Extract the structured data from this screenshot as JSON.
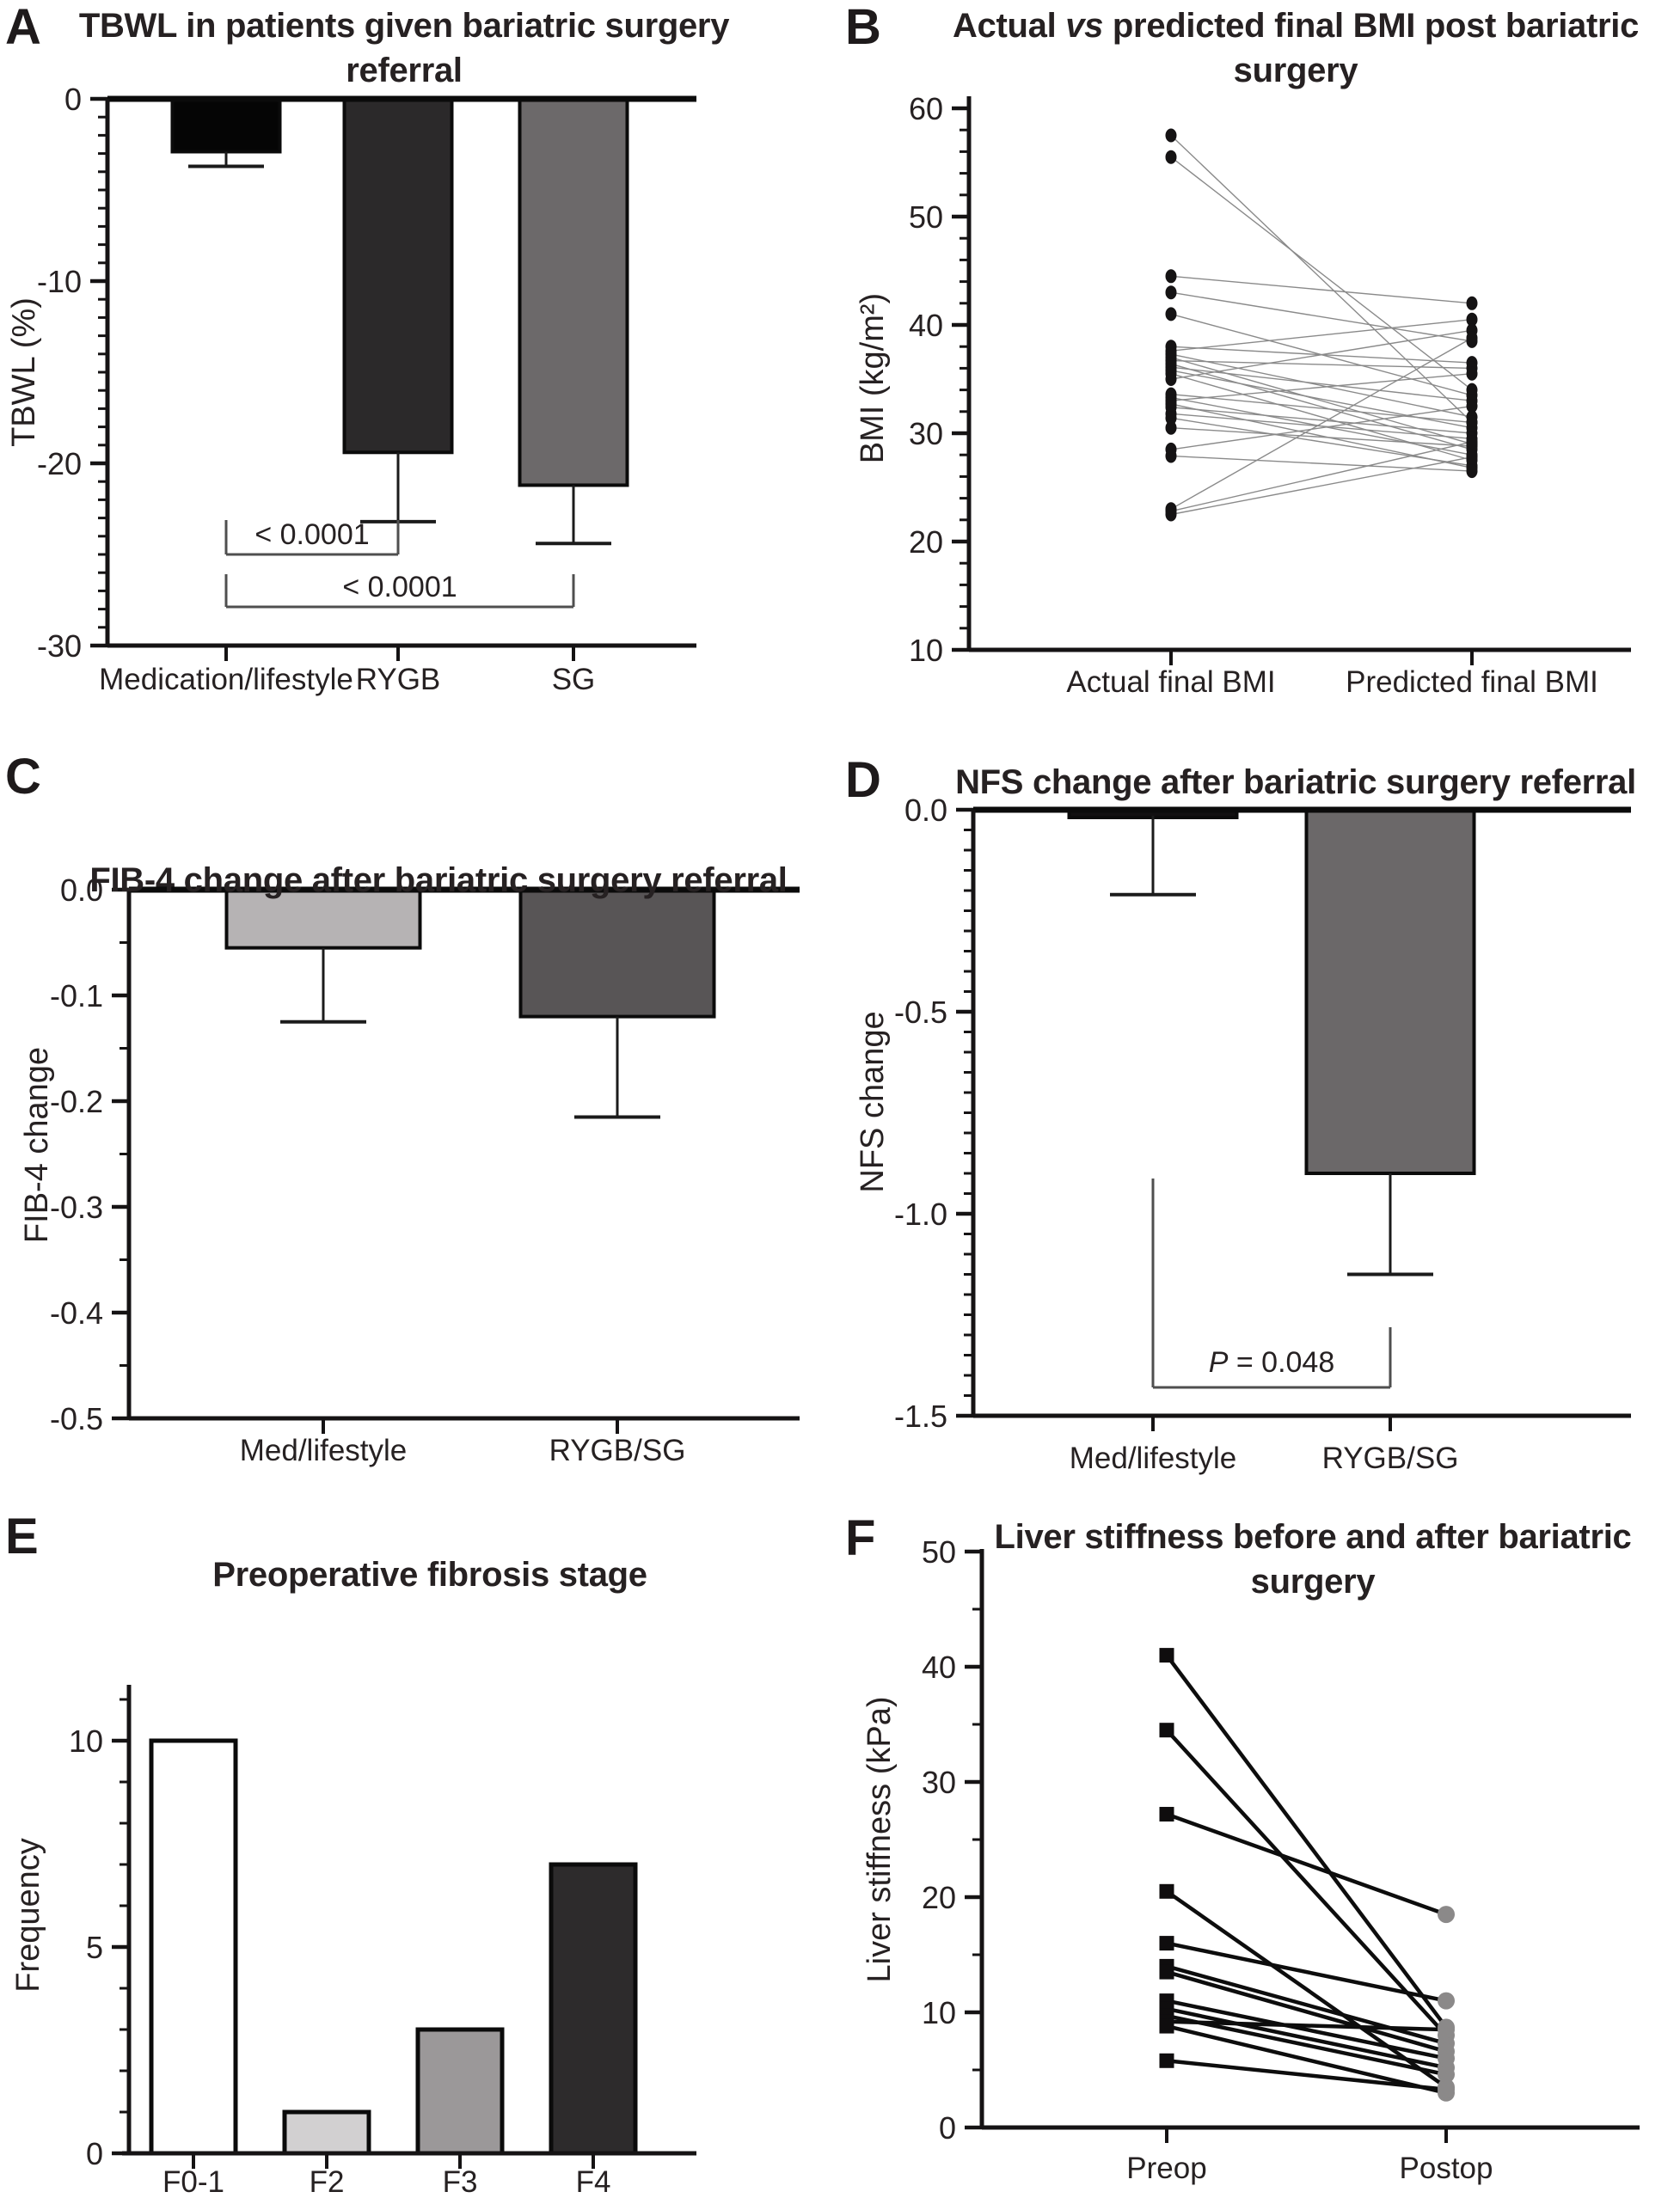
{
  "chart_data": [
    {
      "panel_label": "A",
      "type": "bar-down",
      "title_line1": "TBWL in patients given bariatric surgery",
      "title_line2": "referral",
      "ylabel": "TBWL (%)",
      "categories": [
        "Medication/lifestyle",
        "RYGB",
        "SG"
      ],
      "values": [
        -2.9,
        -19.4,
        -21.2
      ],
      "error_tips": [
        -3.7,
        -23.2,
        -24.4
      ],
      "bar_colors": [
        "#050505",
        "#2b292a",
        "#6c696a"
      ],
      "ylim": [
        0,
        -30
      ],
      "ytick_values": [
        0,
        -10,
        -20,
        -30
      ],
      "ytick_labels": [
        "0",
        "-10",
        "-20",
        "-30"
      ],
      "minor_step": 1,
      "significance": [
        {
          "from": 0,
          "to": 1,
          "label": "< 0.0001"
        },
        {
          "from": 0,
          "to": 2,
          "label": "< 0.0001"
        }
      ]
    },
    {
      "panel_label": "B",
      "type": "paired",
      "title_pre": "Actual ",
      "title_italic": "vs",
      "title_post": " predicted final BMI post bariatric",
      "title_line2": "surgery",
      "ylabel": "BMI (kg/m²)",
      "categories": [
        "Actual final BMI",
        "Predicted final BMI"
      ],
      "ylim": [
        10,
        60
      ],
      "ytick_values": [
        10,
        20,
        30,
        40,
        50,
        60
      ],
      "ytick_labels": [
        "10",
        "20",
        "30",
        "40",
        "50",
        "60"
      ],
      "minor_step": 2,
      "marker": "dot",
      "pairs": [
        [
          57.5,
          31
        ],
        [
          55.5,
          34
        ],
        [
          44.5,
          42
        ],
        [
          43,
          38.5
        ],
        [
          41,
          33.5
        ],
        [
          38,
          36.5
        ],
        [
          37.6,
          40.5
        ],
        [
          37.3,
          31.5
        ],
        [
          37,
          29
        ],
        [
          36.7,
          36
        ],
        [
          36.4,
          28.5
        ],
        [
          36.1,
          33
        ],
        [
          35.8,
          30.5
        ],
        [
          35.5,
          27.5
        ],
        [
          35,
          39.5
        ],
        [
          33.6,
          31
        ],
        [
          33.3,
          28
        ],
        [
          33,
          35.5
        ],
        [
          32.7,
          26.8
        ],
        [
          32.4,
          30
        ],
        [
          31.8,
          29.5
        ],
        [
          31.4,
          27
        ],
        [
          30.5,
          28.8
        ],
        [
          28.5,
          32.5
        ],
        [
          27.9,
          26.5
        ],
        [
          23,
          38.8
        ],
        [
          22.8,
          29.2
        ],
        [
          22.5,
          27.8
        ]
      ]
    },
    {
      "panel_label": "C",
      "type": "bar-down",
      "title_line1": "FIB-4 change after bariatric surgery referral",
      "ylabel": "FIB-4 change",
      "categories": [
        "Med/lifestyle",
        "RYGB/SG"
      ],
      "values": [
        -0.055,
        -0.12
      ],
      "error_tips": [
        -0.125,
        -0.215
      ],
      "bar_colors": [
        "#b6b3b4",
        "#585556"
      ],
      "ylim": [
        0,
        -0.5
      ],
      "ytick_values": [
        0,
        -0.1,
        -0.2,
        -0.3,
        -0.4,
        -0.5
      ],
      "ytick_labels": [
        "0.0",
        "-0.1",
        "-0.2",
        "-0.3",
        "-0.4",
        "-0.5"
      ],
      "minor_step": 0.05,
      "significance": []
    },
    {
      "panel_label": "D",
      "type": "bar-down",
      "title_line1": "NFS change after bariatric surgery referral",
      "ylabel": "NFS change",
      "categories": [
        "Med/lifestyle",
        "RYGB/SG"
      ],
      "values": [
        -0.015,
        -0.9
      ],
      "error_tips": [
        -0.21,
        -1.15
      ],
      "bar_colors": [
        "#121011",
        "#6b6869"
      ],
      "ylim": [
        0,
        -1.5
      ],
      "ytick_values": [
        0,
        -0.5,
        -1.0,
        -1.5
      ],
      "ytick_labels": [
        "0.0",
        "-0.5",
        "-1.0",
        "-1.5"
      ],
      "minor_step": 0.05,
      "significance": [
        {
          "from": 0,
          "to": 1,
          "label_italic": "P",
          "label_rest": " = 0.048"
        }
      ]
    },
    {
      "panel_label": "E",
      "type": "bar-up",
      "title_line1": "Preoperative fibrosis stage",
      "ylabel": "Frequency",
      "categories": [
        "F0-1",
        "F2",
        "F3",
        "F4"
      ],
      "values": [
        10,
        1,
        3,
        7
      ],
      "bar_colors": [
        "#ffffff",
        "#d2d0d1",
        "#9b9899",
        "#2d2b2c"
      ],
      "ylim": [
        0,
        11.3
      ],
      "ytick_values": [
        0,
        5,
        10
      ],
      "ytick_labels": [
        "0",
        "5",
        "10"
      ],
      "minor_step": 1
    },
    {
      "panel_label": "F",
      "type": "paired",
      "title_line1": "Liver stiffness before and after bariatric surgery",
      "ylabel": "Liver stiffness (kPa)",
      "categories": [
        "Preop",
        "Postop"
      ],
      "ylim": [
        0,
        50
      ],
      "ytick_values": [
        0,
        10,
        20,
        30,
        40,
        50
      ],
      "ytick_labels": [
        "0",
        "10",
        "20",
        "30",
        "40",
        "50"
      ],
      "minor_step": 5,
      "marker": "square-circle",
      "pre_color": "#0f0d0e",
      "post_color": "#8b8989",
      "pairs": [
        [
          41,
          8.7
        ],
        [
          34.5,
          8.0
        ],
        [
          27.2,
          18.5
        ],
        [
          20.5,
          3.5
        ],
        [
          16,
          11
        ],
        [
          14,
          7.3
        ],
        [
          13.5,
          6.6
        ],
        [
          11,
          6.0
        ],
        [
          10.3,
          5.2
        ],
        [
          9.7,
          4.6
        ],
        [
          9.2,
          8.5
        ],
        [
          8.8,
          3.0
        ],
        [
          5.8,
          3.3
        ]
      ]
    }
  ]
}
